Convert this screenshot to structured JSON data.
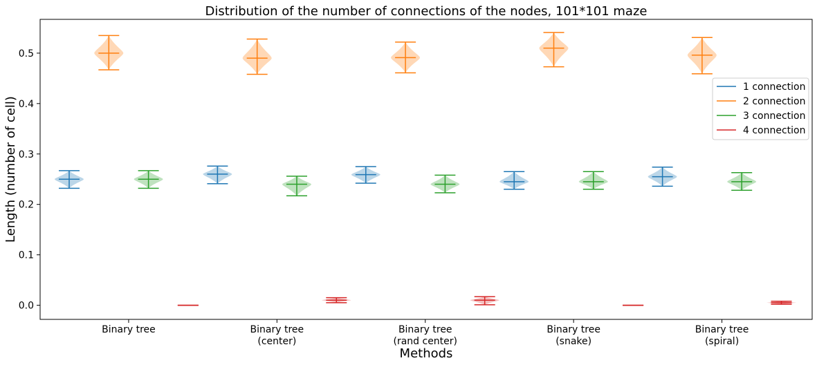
{
  "chart_data": {
    "type": "violin",
    "title": "Distribution of the number of connections of the nodes, 101*101 maze",
    "xlabel": "Methods",
    "ylabel": "Length (number of cell)",
    "ylim": [
      -0.028,
      0.567
    ],
    "yticks": [
      0.0,
      0.1,
      0.2,
      0.3,
      0.4,
      0.5
    ],
    "ytick_labels": [
      "0.0",
      "0.1",
      "0.2",
      "0.3",
      "0.4",
      "0.5"
    ],
    "categories": [
      [
        "Binary tree"
      ],
      [
        "Binary tree",
        "(center)"
      ],
      [
        "Binary tree",
        "(rand center)"
      ],
      [
        "Binary tree",
        "(snake)"
      ],
      [
        "Binary tree",
        "(spiral)"
      ]
    ],
    "legend_position": "right",
    "series": [
      {
        "name": "1 connection",
        "color": "#1f77b4",
        "stats": [
          {
            "min": 0.232,
            "median": 0.25,
            "max": 0.267
          },
          {
            "min": 0.241,
            "median": 0.26,
            "max": 0.276
          },
          {
            "min": 0.242,
            "median": 0.259,
            "max": 0.275
          },
          {
            "min": 0.23,
            "median": 0.245,
            "max": 0.265
          },
          {
            "min": 0.236,
            "median": 0.255,
            "max": 0.274
          }
        ]
      },
      {
        "name": "2 connection",
        "color": "#ff7f0e",
        "stats": [
          {
            "min": 0.467,
            "median": 0.5,
            "max": 0.535
          },
          {
            "min": 0.458,
            "median": 0.49,
            "max": 0.528
          },
          {
            "min": 0.461,
            "median": 0.491,
            "max": 0.522
          },
          {
            "min": 0.473,
            "median": 0.51,
            "max": 0.541
          },
          {
            "min": 0.459,
            "median": 0.496,
            "max": 0.531
          }
        ]
      },
      {
        "name": "3 connection",
        "color": "#2ca02c",
        "stats": [
          {
            "min": 0.232,
            "median": 0.25,
            "max": 0.267
          },
          {
            "min": 0.217,
            "median": 0.24,
            "max": 0.256
          },
          {
            "min": 0.223,
            "median": 0.24,
            "max": 0.258
          },
          {
            "min": 0.23,
            "median": 0.245,
            "max": 0.265
          },
          {
            "min": 0.228,
            "median": 0.245,
            "max": 0.263
          }
        ]
      },
      {
        "name": "4 connection",
        "color": "#d62728",
        "stats": [
          {
            "min": 0.0,
            "median": 0.0,
            "max": 0.0
          },
          {
            "min": 0.005,
            "median": 0.01,
            "max": 0.015
          },
          {
            "min": 0.001,
            "median": 0.01,
            "max": 0.017
          },
          {
            "min": 0.0,
            "median": 0.0,
            "max": 0.0
          },
          {
            "min": 0.002,
            "median": 0.005,
            "max": 0.008
          }
        ]
      }
    ]
  }
}
